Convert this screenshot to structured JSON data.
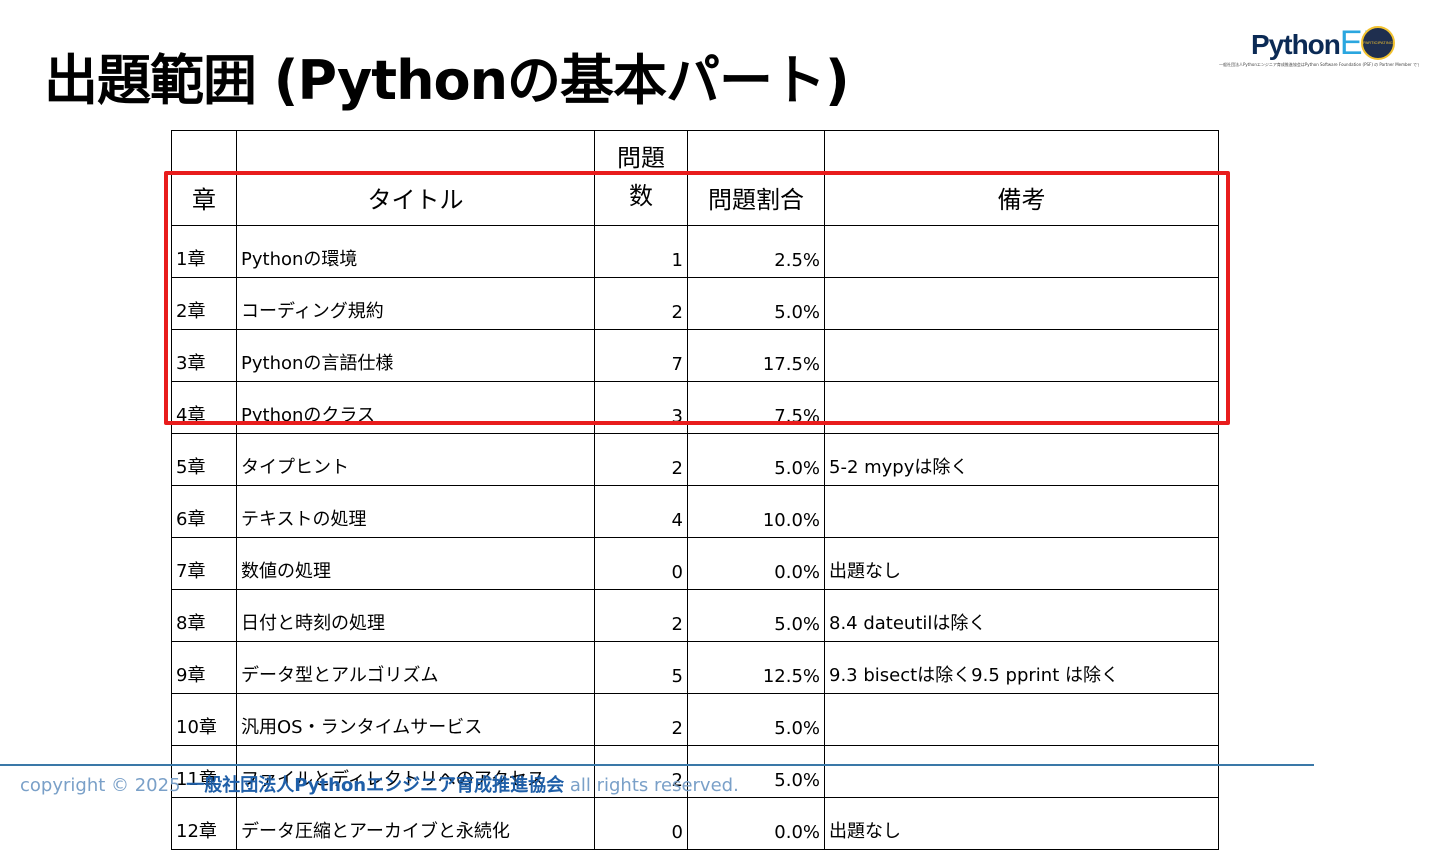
{
  "title": "出題範囲 (Pythonの基本パート)",
  "logo": {
    "python_text": "Python",
    "ed_text": "ED",
    "badge_text": "PARTICIPATING",
    "subtitle": "一般社団法人Pythonエンジニア育成推進協会はPython Software Foundation (PSF) の Partner Member です。"
  },
  "table": {
    "headers": {
      "chapter": "章",
      "title": "タイトル",
      "count_line1": "問題",
      "count_line2": "数",
      "ratio": "問題割合",
      "note": "備考"
    },
    "rows": [
      {
        "chapter": "1章",
        "title": "Pythonの環境",
        "count": "1",
        "ratio": "2.5%",
        "note": ""
      },
      {
        "chapter": "2章",
        "title": "コーディング規約",
        "count": "2",
        "ratio": "5.0%",
        "note": ""
      },
      {
        "chapter": "3章",
        "title": "Pythonの言語仕様",
        "count": "7",
        "ratio": "17.5%",
        "note": ""
      },
      {
        "chapter": "4章",
        "title": "Pythonのクラス",
        "count": "3",
        "ratio": "7.5%",
        "note": ""
      },
      {
        "chapter": "5章",
        "title": "タイプヒント",
        "count": "2",
        "ratio": "5.0%",
        "note": "5-2 mypyは除く"
      },
      {
        "chapter": "6章",
        "title": "テキストの処理",
        "count": "4",
        "ratio": "10.0%",
        "note": ""
      },
      {
        "chapter": "7章",
        "title": "数値の処理",
        "count": "0",
        "ratio": "0.0%",
        "note": "出題なし"
      },
      {
        "chapter": "8章",
        "title": "日付と時刻の処理",
        "count": "2",
        "ratio": "5.0%",
        "note": "8.4 dateutilは除く"
      },
      {
        "chapter": "9章",
        "title": "データ型とアルゴリズム",
        "count": "5",
        "ratio": "12.5%",
        "note": "9.3 bisectは除く9.5 pprint は除く"
      },
      {
        "chapter": "10章",
        "title": "汎用OS・ランタイムサービス",
        "count": "2",
        "ratio": "5.0%",
        "note": ""
      },
      {
        "chapter": "11章",
        "title": "ファイルとディレクトリへのアクセス",
        "count": "2",
        "ratio": "5.0%",
        "note": ""
      },
      {
        "chapter": "12章",
        "title": "データ圧縮とアーカイブと永続化",
        "count": "0",
        "ratio": "0.0%",
        "note": "出題なし"
      }
    ]
  },
  "footer": {
    "prefix": "copyright © 2025 ",
    "org": "一般社団法人Pythonエンジニア育成推進協会",
    "suffix": " all rights reserved."
  },
  "colors": {
    "highlight": "#e81c1c",
    "footer_line": "#3a78a8",
    "footer_text": "#7aa0c8",
    "footer_org": "#1f5fa8"
  }
}
